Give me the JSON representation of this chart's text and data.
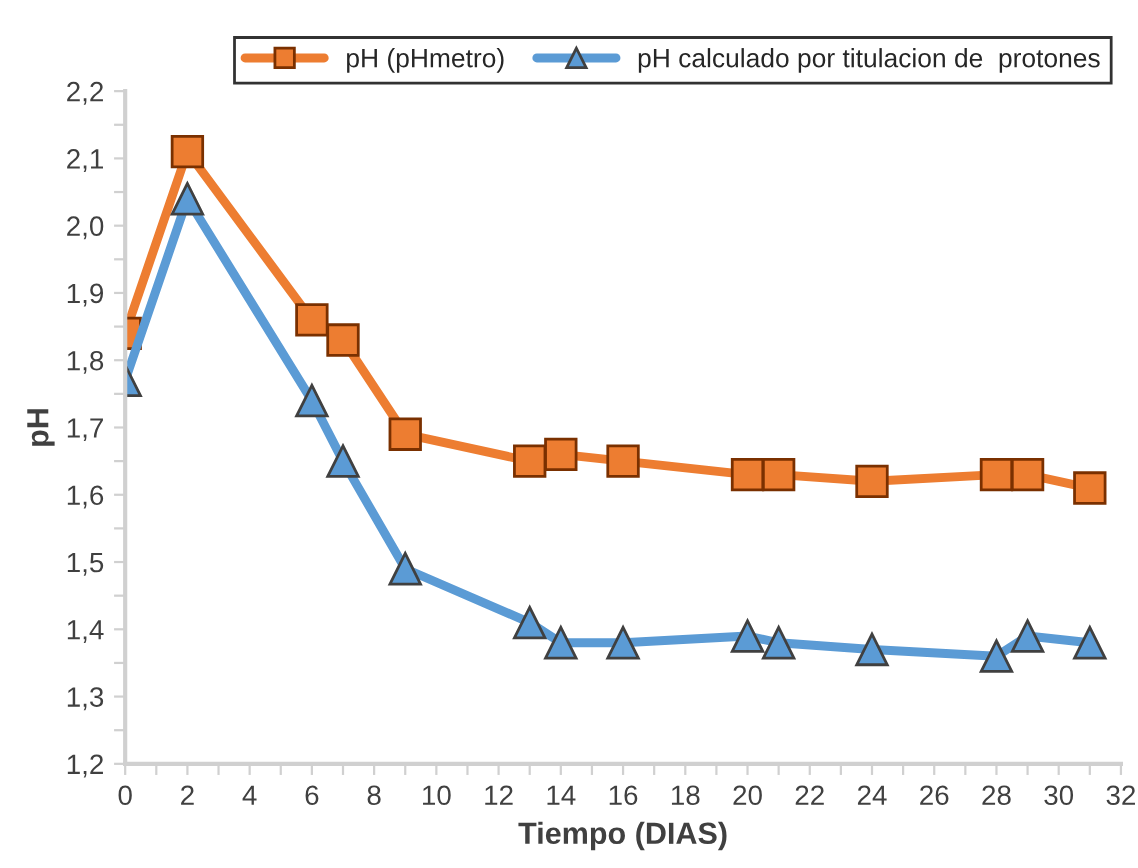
{
  "chart_data": {
    "type": "line",
    "xlabel": "Tiempo (DIAS)",
    "ylabel": "pH",
    "x": [
      0,
      2,
      6,
      7,
      9,
      13,
      14,
      16,
      20,
      21,
      24,
      28,
      29,
      31
    ],
    "series": [
      {
        "name": "pH (pHmetro)",
        "color": "#ed7d31",
        "marker": "square",
        "values": [
          1.84,
          2.11,
          1.86,
          1.83,
          1.69,
          1.65,
          1.66,
          1.65,
          1.63,
          1.63,
          1.62,
          1.63,
          1.63,
          1.61
        ]
      },
      {
        "name": "pH calculado por titulacion de  protones",
        "color": "#5b9bd5",
        "marker": "triangle",
        "values": [
          1.77,
          2.04,
          1.74,
          1.65,
          1.49,
          1.41,
          1.38,
          1.38,
          1.39,
          1.38,
          1.37,
          1.36,
          1.39,
          1.38
        ]
      }
    ],
    "xlim": [
      0,
      32
    ],
    "xticks": [
      0,
      {
        "value": 1,
        "label": null
      },
      2,
      {
        "value": 3,
        "label": null
      },
      4,
      {
        "value": 5,
        "label": null
      },
      6,
      {
        "value": 7,
        "label": null
      },
      8,
      {
        "value": 9,
        "label": null
      },
      10,
      {
        "value": 11,
        "label": null
      },
      12,
      {
        "value": 13,
        "label": null
      },
      14,
      {
        "value": 15,
        "label": null
      },
      16,
      {
        "value": 17,
        "label": null
      },
      18,
      {
        "value": 19,
        "label": null
      },
      20,
      {
        "value": 21,
        "label": null
      },
      22,
      {
        "value": 23,
        "label": null
      },
      24,
      {
        "value": 25,
        "label": null
      },
      26,
      {
        "value": 27,
        "label": null
      },
      28,
      {
        "value": 29,
        "label": null
      },
      30,
      {
        "value": 31,
        "label": null
      },
      32
    ],
    "ylim": [
      1.2,
      2.2
    ],
    "yticks": [
      {
        "value": 1.2,
        "label": "1,2"
      },
      {
        "value": 1.25,
        "label": null
      },
      {
        "value": 1.3,
        "label": "1,3"
      },
      {
        "value": 1.35,
        "label": null
      },
      {
        "value": 1.4,
        "label": "1,4"
      },
      {
        "value": 1.45,
        "label": null
      },
      {
        "value": 1.5,
        "label": "1,5"
      },
      {
        "value": 1.55,
        "label": null
      },
      {
        "value": 1.6,
        "label": "1,6"
      },
      {
        "value": 1.65,
        "label": null
      },
      {
        "value": 1.7,
        "label": "1,7"
      },
      {
        "value": 1.75,
        "label": null
      },
      {
        "value": 1.8,
        "label": "1,8"
      },
      {
        "value": 1.85,
        "label": null
      },
      {
        "value": 1.9,
        "label": "1,9"
      },
      {
        "value": 1.95,
        "label": null
      },
      {
        "value": 2.0,
        "label": "2,0"
      },
      {
        "value": 2.05,
        "label": null
      },
      {
        "value": 2.1,
        "label": "2,1"
      },
      {
        "value": 2.15,
        "label": null
      },
      {
        "value": 2.2,
        "label": "2,2"
      }
    ],
    "grid": false,
    "legend": "top",
    "line_style": "solid"
  }
}
